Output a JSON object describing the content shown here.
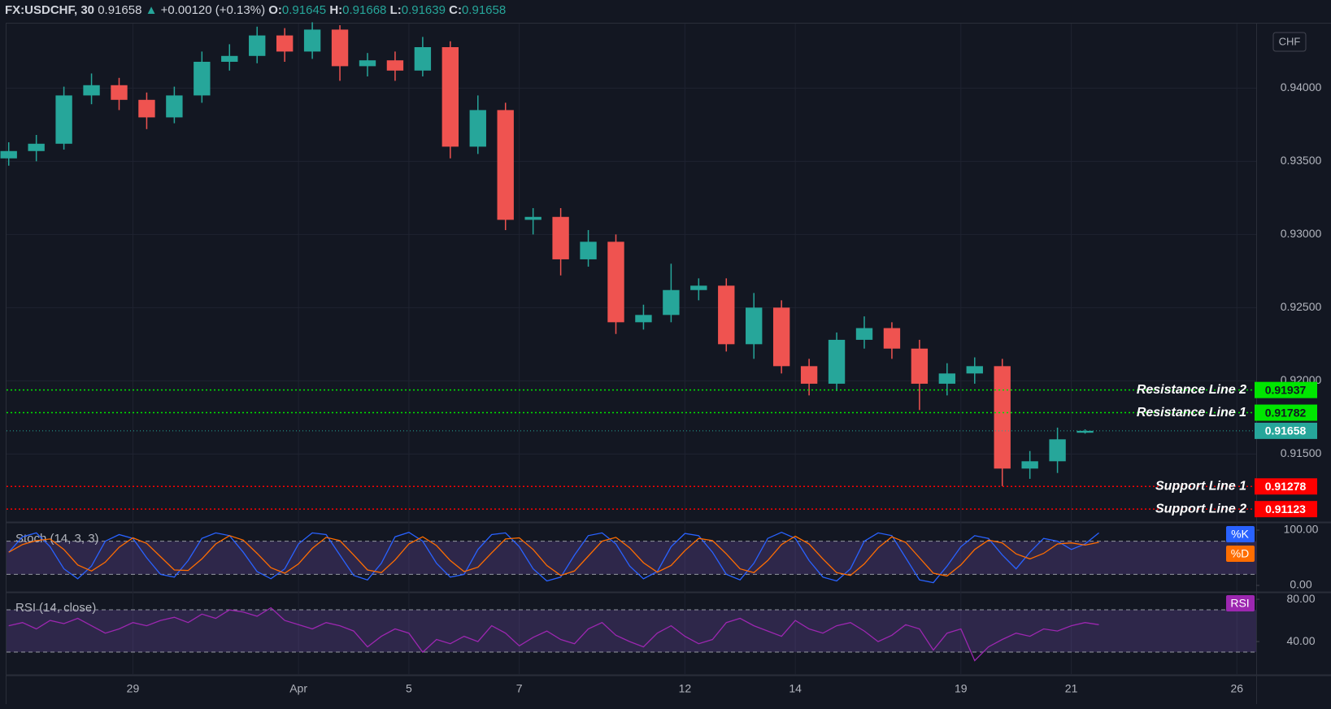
{
  "chart_data": [
    {
      "type": "candlestick",
      "title": "FX:USDCHF, 30",
      "last": 0.91658,
      "last_color": "#26a69a",
      "change": "+0.00120 (+0.13%)",
      "ohlc": [
        {
          "label": "O:",
          "value": 0.91645
        },
        {
          "label": "H:",
          "value": 0.91668
        },
        {
          "label": "L:",
          "value": 0.91639
        },
        {
          "label": "C:",
          "value": 0.91658
        }
      ],
      "currency": "CHF",
      "up_color": "#26a69a",
      "down_color": "#ef5350",
      "xlim": [
        -2.29,
        20.35
      ],
      "ylim": [
        0.91035,
        0.9443
      ],
      "yticks": [
        {
          "value": 0.915,
          "label": "0.91500"
        },
        {
          "value": 0.92,
          "label": "0.92000"
        },
        {
          "value": 0.925,
          "label": "0.92500"
        },
        {
          "value": 0.93,
          "label": "0.93000"
        },
        {
          "value": 0.935,
          "label": "0.93500"
        },
        {
          "value": 0.94,
          "label": "0.94000"
        }
      ],
      "x": [
        -2.25,
        -1.75,
        -1.25,
        -0.75,
        -0.25,
        0.25,
        0.75,
        1.25,
        1.75,
        2.25,
        2.75,
        3.25,
        3.75,
        4.25,
        4.75,
        5.25,
        5.75,
        6.25,
        6.75,
        7.25,
        7.75,
        8.25,
        8.75,
        9.25,
        9.75,
        10.25,
        10.75,
        11.25,
        11.75,
        12.25,
        12.75,
        13.25,
        13.75,
        14.25,
        14.75,
        15.25,
        15.75,
        16.25,
        16.75,
        17.25
      ],
      "open": [
        0.9352,
        0.9357,
        0.9362,
        0.9395,
        0.9402,
        0.9392,
        0.938,
        0.9395,
        0.9418,
        0.9422,
        0.9436,
        0.9425,
        0.944,
        0.9415,
        0.9419,
        0.9412,
        0.9428,
        0.936,
        0.9385,
        0.931,
        0.9312,
        0.9283,
        0.9295,
        0.924,
        0.9245,
        0.9262,
        0.9265,
        0.9225,
        0.925,
        0.921,
        0.9198,
        0.9228,
        0.9236,
        0.9222,
        0.9198,
        0.9205,
        0.921,
        0.914,
        0.9145,
        0.91645
      ],
      "high": [
        0.9363,
        0.9368,
        0.9401,
        0.941,
        0.9407,
        0.9397,
        0.9401,
        0.9425,
        0.943,
        0.9442,
        0.9441,
        0.9445,
        0.9443,
        0.9424,
        0.9425,
        0.9435,
        0.9432,
        0.9395,
        0.939,
        0.9318,
        0.9318,
        0.9303,
        0.93,
        0.9252,
        0.928,
        0.927,
        0.927,
        0.926,
        0.9255,
        0.9215,
        0.9233,
        0.9244,
        0.924,
        0.9228,
        0.9212,
        0.9216,
        0.9215,
        0.9152,
        0.9168,
        0.91668
      ],
      "low": [
        0.9347,
        0.935,
        0.9358,
        0.9389,
        0.9385,
        0.9372,
        0.9376,
        0.939,
        0.9412,
        0.9417,
        0.9418,
        0.942,
        0.9405,
        0.9408,
        0.9405,
        0.9408,
        0.9352,
        0.9355,
        0.9303,
        0.93,
        0.9272,
        0.9278,
        0.9232,
        0.9235,
        0.924,
        0.9255,
        0.922,
        0.9215,
        0.9205,
        0.919,
        0.9193,
        0.9222,
        0.9215,
        0.918,
        0.919,
        0.9198,
        0.9128,
        0.9133,
        0.9137,
        0.91639
      ],
      "close": [
        0.9357,
        0.9362,
        0.9395,
        0.9402,
        0.9392,
        0.938,
        0.9395,
        0.9418,
        0.9422,
        0.9436,
        0.9425,
        0.944,
        0.9415,
        0.9419,
        0.9412,
        0.9428,
        0.936,
        0.9385,
        0.931,
        0.9312,
        0.9283,
        0.9295,
        0.924,
        0.9245,
        0.9262,
        0.9265,
        0.9225,
        0.925,
        0.921,
        0.9198,
        0.9228,
        0.9236,
        0.9222,
        0.9198,
        0.9205,
        0.921,
        0.914,
        0.9145,
        0.916,
        0.91658
      ],
      "levels": [
        {
          "name": "Resistance Line 2",
          "value": 0.91937,
          "color": "#00e600",
          "text_color": "#131722"
        },
        {
          "name": "Resistance Line 1",
          "value": 0.91782,
          "color": "#00e600",
          "text_color": "#131722"
        },
        {
          "name": "Support Line 1",
          "value": 0.91278,
          "color": "#ff0000",
          "text_color": "#ffffff"
        },
        {
          "name": "Support Line 2",
          "value": 0.91123,
          "color": "#ff0000",
          "text_color": "#ffffff"
        }
      ]
    },
    {
      "type": "line",
      "title": "Stoch (14, 3, 3)",
      "xlim": [
        -2.29,
        20.35
      ],
      "ylim": [
        -11.8,
        111.8
      ],
      "yticks": [
        {
          "value": 100,
          "label": "100.00"
        },
        {
          "value": 0,
          "label": "0.00"
        }
      ],
      "bands": [
        20,
        80
      ],
      "band_color": "#7e57c2",
      "x": [
        -2.25,
        -2,
        -1.75,
        -1.5,
        -1.25,
        -1,
        -0.75,
        -0.5,
        -0.25,
        0,
        0.25,
        0.5,
        0.75,
        1,
        1.25,
        1.5,
        1.75,
        2,
        2.25,
        2.5,
        2.75,
        3,
        3.25,
        3.5,
        3.75,
        4,
        4.25,
        4.5,
        4.75,
        5,
        5.25,
        5.5,
        5.75,
        6,
        6.25,
        6.5,
        6.75,
        7,
        7.25,
        7.5,
        7.75,
        8,
        8.25,
        8.5,
        8.75,
        9,
        9.25,
        9.5,
        9.75,
        10,
        10.25,
        10.5,
        10.75,
        11,
        11.25,
        11.5,
        11.75,
        12,
        12.25,
        12.5,
        12.75,
        13,
        13.25,
        13.5,
        13.75,
        14,
        14.25,
        14.5,
        14.75,
        15,
        15.25,
        15.5,
        15.75,
        16,
        16.25,
        16.5,
        16.75,
        17,
        17.25,
        17.5
      ],
      "series": [
        {
          "name": "%K",
          "color": "#2962ff",
          "values": [
            60,
            88,
            95,
            70,
            30,
            12,
            35,
            80,
            92,
            85,
            50,
            20,
            15,
            45,
            85,
            95,
            90,
            60,
            25,
            12,
            30,
            75,
            95,
            92,
            55,
            18,
            10,
            40,
            88,
            96,
            80,
            40,
            15,
            20,
            65,
            92,
            95,
            70,
            30,
            8,
            15,
            55,
            90,
            95,
            75,
            35,
            12,
            25,
            70,
            94,
            90,
            60,
            20,
            10,
            40,
            85,
            96,
            85,
            45,
            15,
            8,
            30,
            80,
            95,
            90,
            50,
            10,
            5,
            35,
            70,
            90,
            85,
            55,
            30,
            60,
            85,
            80,
            65,
            75,
            95
          ]
        },
        {
          "name": "%D",
          "color": "#ff6d00",
          "values": [
            60,
            74,
            81,
            84,
            65,
            37,
            26,
            42,
            69,
            86,
            76,
            52,
            28,
            27,
            48,
            75,
            90,
            82,
            58,
            32,
            22,
            39,
            67,
            87,
            81,
            55,
            28,
            23,
            46,
            75,
            88,
            72,
            45,
            25,
            33,
            59,
            84,
            86,
            65,
            36,
            18,
            26,
            53,
            80,
            87,
            68,
            41,
            24,
            36,
            63,
            85,
            81,
            57,
            30,
            23,
            45,
            74,
            89,
            75,
            48,
            23,
            18,
            39,
            68,
            88,
            78,
            50,
            22,
            17,
            37,
            65,
            82,
            77,
            57,
            48,
            58,
            75,
            77,
            73,
            78
          ]
        }
      ]
    },
    {
      "type": "line",
      "title": "RSI (14, close)",
      "xlim": [
        -2.29,
        20.35
      ],
      "ylim": [
        8.5,
        86.2
      ],
      "yticks": [
        {
          "value": 80,
          "label": "80.00"
        },
        {
          "value": 40,
          "label": "40.00"
        }
      ],
      "bands": [
        30,
        70
      ],
      "band_color": "#7e57c2",
      "xticks": [
        {
          "value": 0,
          "label": "29"
        },
        {
          "value": 3,
          "label": "Apr"
        },
        {
          "value": 5,
          "label": "5"
        },
        {
          "value": 7,
          "label": "7"
        },
        {
          "value": 10,
          "label": "12"
        },
        {
          "value": 12,
          "label": "14"
        },
        {
          "value": 15,
          "label": "19"
        },
        {
          "value": 17,
          "label": "21"
        },
        {
          "value": 20,
          "label": "26"
        }
      ],
      "x": [
        -2.25,
        -2,
        -1.75,
        -1.5,
        -1.25,
        -1,
        -0.75,
        -0.5,
        -0.25,
        0,
        0.25,
        0.5,
        0.75,
        1,
        1.25,
        1.5,
        1.75,
        2,
        2.25,
        2.5,
        2.75,
        3,
        3.25,
        3.5,
        3.75,
        4,
        4.25,
        4.5,
        4.75,
        5,
        5.25,
        5.5,
        5.75,
        6,
        6.25,
        6.5,
        6.75,
        7,
        7.25,
        7.5,
        7.75,
        8,
        8.25,
        8.5,
        8.75,
        9,
        9.25,
        9.5,
        9.75,
        10,
        10.25,
        10.5,
        10.75,
        11,
        11.25,
        11.5,
        11.75,
        12,
        12.25,
        12.5,
        12.75,
        13,
        13.25,
        13.5,
        13.75,
        14,
        14.25,
        14.5,
        14.75,
        15,
        15.25,
        15.5,
        15.75,
        16,
        16.25,
        16.5,
        16.75,
        17,
        17.25,
        17.5
      ],
      "series": [
        {
          "name": "RSI",
          "color": "#9c27b0",
          "values": [
            55,
            58,
            52,
            60,
            57,
            62,
            55,
            48,
            52,
            58,
            55,
            60,
            63,
            58,
            66,
            62,
            70,
            68,
            64,
            72,
            60,
            56,
            52,
            58,
            55,
            50,
            35,
            45,
            52,
            48,
            30,
            42,
            38,
            45,
            40,
            55,
            48,
            36,
            44,
            50,
            42,
            38,
            52,
            58,
            46,
            40,
            35,
            48,
            55,
            45,
            38,
            42,
            58,
            62,
            55,
            50,
            45,
            60,
            52,
            48,
            55,
            58,
            50,
            40,
            46,
            56,
            52,
            32,
            48,
            52,
            22,
            35,
            42,
            48,
            45,
            52,
            50,
            55,
            58,
            56
          ]
        }
      ]
    }
  ]
}
